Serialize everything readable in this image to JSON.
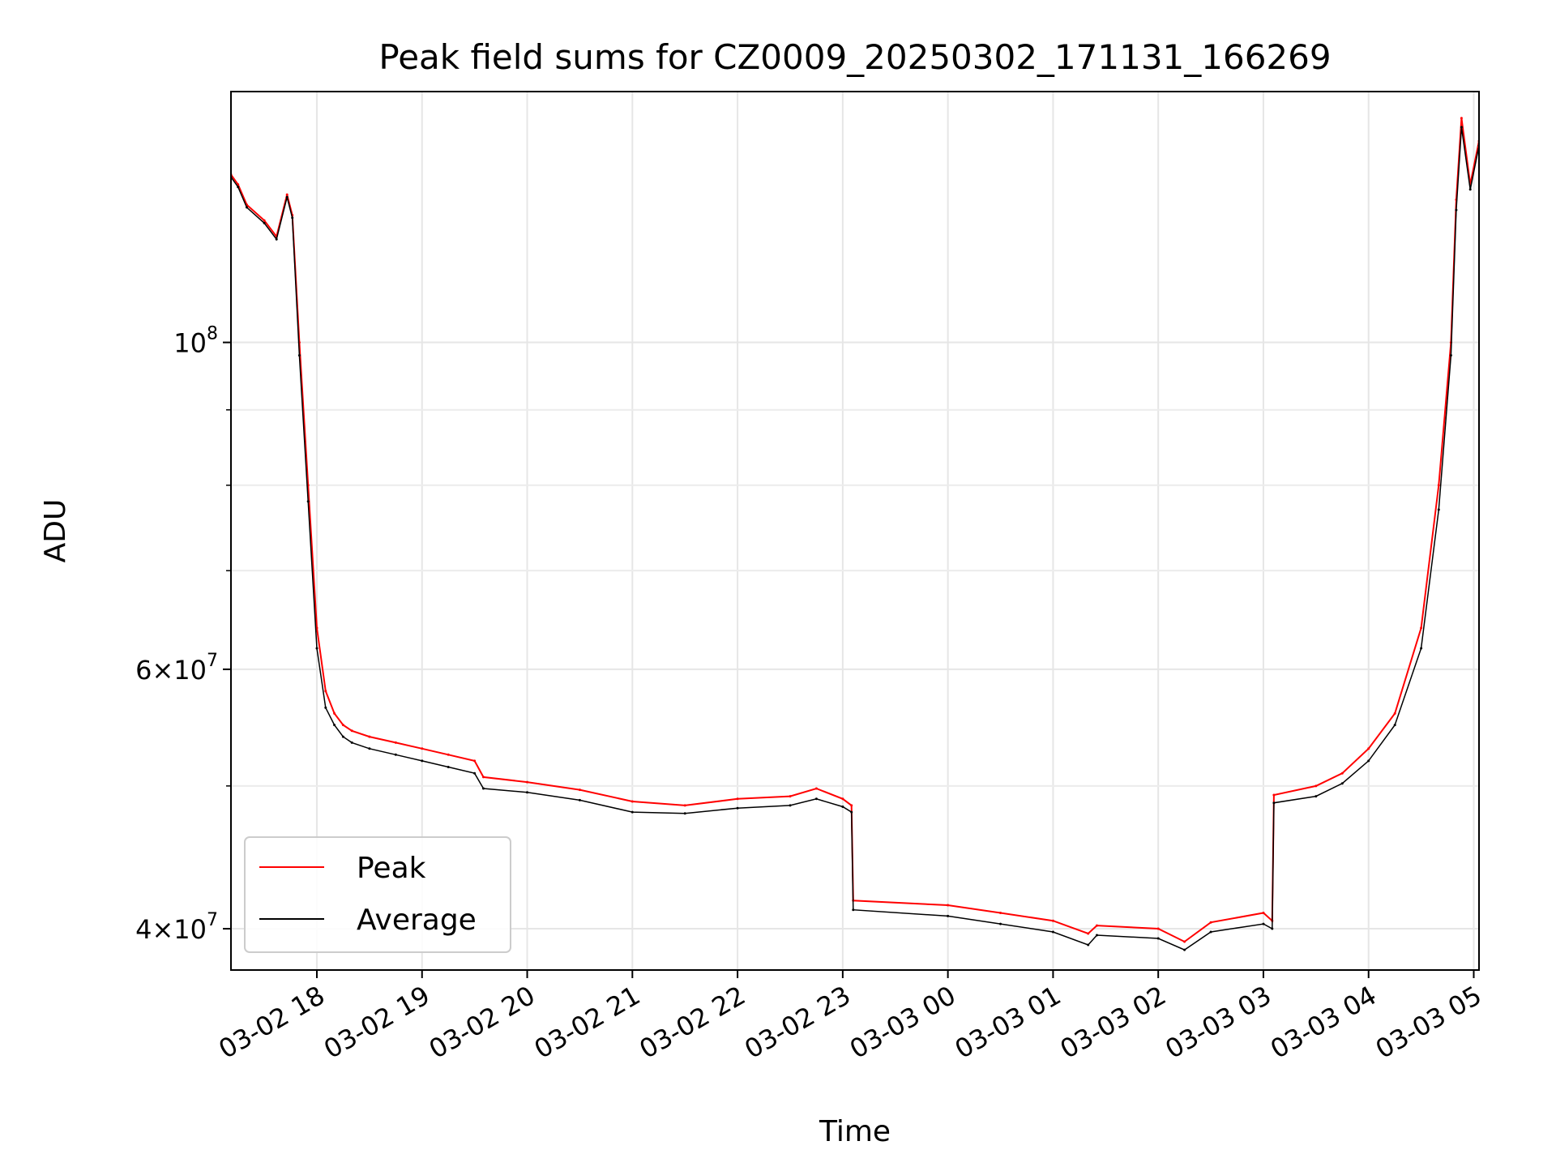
{
  "chart_data": {
    "type": "line",
    "title": "Peak field sums for CZ0009_20250302_171131_166269",
    "xlabel": "Time",
    "ylabel": "ADU",
    "xscale": "time",
    "yscale": "log",
    "xlim": [
      "2025-03-02 17:11",
      "2025-03-03 05:03"
    ],
    "ylim": [
      37500000,
      148000000
    ],
    "grid": true,
    "legend_position": "lower left",
    "x_ticks": [
      "03-02 18",
      "03-02 19",
      "03-02 20",
      "03-02 21",
      "03-02 22",
      "03-02 23",
      "03-03 00",
      "03-03 01",
      "03-03 02",
      "03-03 03",
      "03-03 04",
      "03-03 05"
    ],
    "y_ticks": [
      {
        "value": 100000000,
        "base": "10",
        "exp": "8",
        "mant": ""
      },
      {
        "value": 60000000,
        "base": "10",
        "exp": "7",
        "mant": "6"
      },
      {
        "value": 40000000,
        "base": "10",
        "exp": "7",
        "mant": "4"
      }
    ],
    "y_minor_ticks": [
      50000000,
      70000000,
      80000000,
      90000000
    ],
    "series": [
      {
        "name": "Peak",
        "color": "#ff0000",
        "x": [
          "2025-03-02 17:11",
          "2025-03-02 17:15",
          "2025-03-02 17:20",
          "2025-03-02 17:30",
          "2025-03-02 17:37",
          "2025-03-02 17:43",
          "2025-03-02 17:46",
          "2025-03-02 17:50",
          "2025-03-02 17:55",
          "2025-03-02 18:00",
          "2025-03-02 18:05",
          "2025-03-02 18:10",
          "2025-03-02 18:15",
          "2025-03-02 18:20",
          "2025-03-02 18:30",
          "2025-03-02 18:45",
          "2025-03-02 19:00",
          "2025-03-02 19:15",
          "2025-03-02 19:30",
          "2025-03-02 19:35",
          "2025-03-02 20:00",
          "2025-03-02 20:30",
          "2025-03-02 21:00",
          "2025-03-02 21:30",
          "2025-03-02 22:00",
          "2025-03-02 22:30",
          "2025-03-02 22:45",
          "2025-03-02 23:00",
          "2025-03-02 23:05",
          "2025-03-02 23:06",
          "2025-03-03 00:00",
          "2025-03-03 00:30",
          "2025-03-03 01:00",
          "2025-03-03 01:20",
          "2025-03-03 01:25",
          "2025-03-03 02:00",
          "2025-03-03 02:15",
          "2025-03-03 02:30",
          "2025-03-03 03:00",
          "2025-03-03 03:05",
          "2025-03-03 03:06",
          "2025-03-03 03:30",
          "2025-03-03 03:45",
          "2025-03-03 04:00",
          "2025-03-03 04:15",
          "2025-03-03 04:30",
          "2025-03-03 04:40",
          "2025-03-03 04:47",
          "2025-03-03 04:50",
          "2025-03-03 04:53",
          "2025-03-03 04:58",
          "2025-03-03 05:03"
        ],
        "y": [
          130000000,
          128000000,
          124000000,
          121000000,
          118000000,
          126000000,
          122000000,
          100000000,
          80000000,
          64000000,
          58000000,
          56000000,
          55000000,
          54500000,
          54000000,
          53500000,
          53000000,
          52500000,
          52000000,
          50700000,
          50300000,
          49700000,
          48800000,
          48500000,
          49000000,
          49200000,
          49800000,
          49000000,
          48500000,
          41800000,
          41500000,
          41000000,
          40500000,
          39700000,
          40200000,
          40000000,
          39200000,
          40400000,
          41000000,
          40500000,
          49300000,
          50000000,
          51000000,
          53000000,
          56000000,
          64000000,
          80000000,
          100000000,
          125000000,
          142000000,
          128000000,
          137000000
        ]
      },
      {
        "name": "Average",
        "color": "#000000",
        "x": [
          "2025-03-02 17:11",
          "2025-03-02 17:15",
          "2025-03-02 17:20",
          "2025-03-02 17:30",
          "2025-03-02 17:37",
          "2025-03-02 17:43",
          "2025-03-02 17:46",
          "2025-03-02 17:50",
          "2025-03-02 17:55",
          "2025-03-02 18:00",
          "2025-03-02 18:05",
          "2025-03-02 18:10",
          "2025-03-02 18:15",
          "2025-03-02 18:20",
          "2025-03-02 18:30",
          "2025-03-02 18:45",
          "2025-03-02 19:00",
          "2025-03-02 19:15",
          "2025-03-02 19:30",
          "2025-03-02 19:35",
          "2025-03-02 20:00",
          "2025-03-02 20:30",
          "2025-03-02 21:00",
          "2025-03-02 21:30",
          "2025-03-02 22:00",
          "2025-03-02 22:30",
          "2025-03-02 22:45",
          "2025-03-02 23:00",
          "2025-03-02 23:05",
          "2025-03-02 23:06",
          "2025-03-03 00:00",
          "2025-03-03 00:30",
          "2025-03-03 01:00",
          "2025-03-03 01:20",
          "2025-03-03 01:25",
          "2025-03-03 02:00",
          "2025-03-03 02:15",
          "2025-03-03 02:30",
          "2025-03-03 03:00",
          "2025-03-03 03:05",
          "2025-03-03 03:06",
          "2025-03-03 03:30",
          "2025-03-03 03:45",
          "2025-03-03 04:00",
          "2025-03-03 04:15",
          "2025-03-03 04:30",
          "2025-03-03 04:40",
          "2025-03-03 04:47",
          "2025-03-03 04:50",
          "2025-03-03 04:53",
          "2025-03-03 04:58",
          "2025-03-03 05:03"
        ],
        "y": [
          129500000,
          127500000,
          123500000,
          120500000,
          117500000,
          125500000,
          121500000,
          98000000,
          78000000,
          62000000,
          56500000,
          55000000,
          54000000,
          53500000,
          53000000,
          52500000,
          52000000,
          51500000,
          51000000,
          49800000,
          49500000,
          48900000,
          48000000,
          47900000,
          48300000,
          48500000,
          49000000,
          48400000,
          48000000,
          41200000,
          40800000,
          40300000,
          39800000,
          39000000,
          39600000,
          39400000,
          38700000,
          39800000,
          40300000,
          40000000,
          48700000,
          49200000,
          50200000,
          52000000,
          55000000,
          62000000,
          77000000,
          98000000,
          123000000,
          140000000,
          127000000,
          136000000
        ]
      }
    ]
  }
}
